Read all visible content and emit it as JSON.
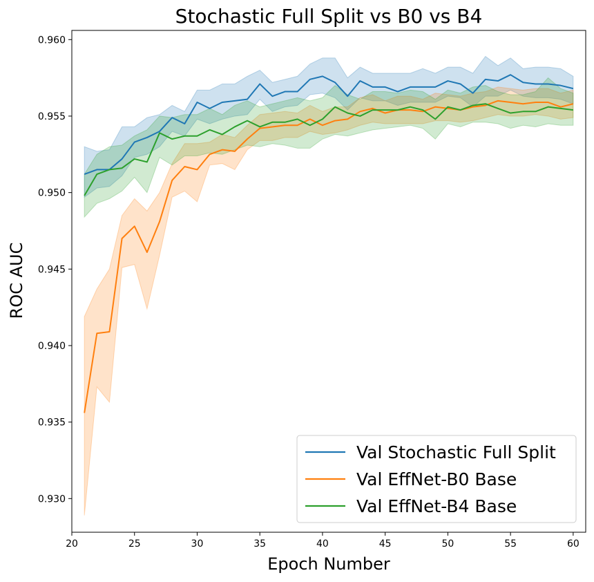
{
  "chart_data": {
    "type": "line",
    "title": "Stochastic Full Split vs B0 vs B4",
    "xlabel": "Epoch Number",
    "ylabel": "ROC AUC",
    "xlim": [
      20,
      61
    ],
    "ylim": [
      0.9278,
      0.9606
    ],
    "xticks": [
      20,
      25,
      30,
      35,
      40,
      45,
      50,
      55,
      60
    ],
    "yticks": [
      0.93,
      0.935,
      0.94,
      0.945,
      0.95,
      0.955,
      0.96
    ],
    "ytick_labels": [
      "0.930",
      "0.935",
      "0.940",
      "0.945",
      "0.950",
      "0.955",
      "0.960"
    ],
    "legend_position": "lower-right",
    "grid": false,
    "x": [
      21,
      22,
      23,
      24,
      25,
      26,
      27,
      28,
      29,
      30,
      31,
      32,
      33,
      34,
      35,
      36,
      37,
      38,
      39,
      40,
      41,
      42,
      43,
      44,
      45,
      46,
      47,
      48,
      49,
      50,
      51,
      52,
      53,
      54,
      55,
      56,
      57,
      58,
      59,
      60
    ],
    "series": [
      {
        "name": "Val Stochastic Full Split",
        "color": "#1f77b4",
        "values": [
          0.9512,
          0.9515,
          0.9515,
          0.9522,
          0.9533,
          0.9536,
          0.954,
          0.9549,
          0.9545,
          0.9559,
          0.9555,
          0.9559,
          0.956,
          0.9561,
          0.9571,
          0.9563,
          0.9566,
          0.9566,
          0.9574,
          0.9576,
          0.9572,
          0.9563,
          0.9573,
          0.9569,
          0.9569,
          0.9566,
          0.9569,
          0.9569,
          0.9569,
          0.9573,
          0.9571,
          0.9565,
          0.9574,
          0.9573,
          0.9577,
          0.9572,
          0.9571,
          0.9571,
          0.957,
          0.9568
        ],
        "lower": [
          0.9497,
          0.9503,
          0.9504,
          0.9511,
          0.9523,
          0.9525,
          0.953,
          0.954,
          0.9537,
          0.9548,
          0.9545,
          0.9548,
          0.955,
          0.9551,
          0.9561,
          0.9553,
          0.9556,
          0.9557,
          0.9564,
          0.9565,
          0.9562,
          0.9554,
          0.9562,
          0.956,
          0.956,
          0.9557,
          0.9559,
          0.9559,
          0.9559,
          0.9563,
          0.9562,
          0.9556,
          0.9563,
          0.9563,
          0.9567,
          0.9563,
          0.9562,
          0.9562,
          0.9561,
          0.9558
        ],
        "upper": [
          0.953,
          0.9527,
          0.9528,
          0.9543,
          0.9543,
          0.9549,
          0.9551,
          0.9557,
          0.9553,
          0.9567,
          0.9567,
          0.9571,
          0.9571,
          0.9576,
          0.958,
          0.9572,
          0.9574,
          0.9576,
          0.9584,
          0.9588,
          0.9588,
          0.9575,
          0.9582,
          0.9578,
          0.9578,
          0.9578,
          0.9578,
          0.9581,
          0.9578,
          0.9582,
          0.9582,
          0.9578,
          0.9589,
          0.9583,
          0.9588,
          0.9581,
          0.9582,
          0.9582,
          0.9581,
          0.9576
        ]
      },
      {
        "name": "Val EffNet-B0 Base",
        "color": "#ff7f0e",
        "values": [
          0.9356,
          0.9408,
          0.9409,
          0.947,
          0.9478,
          0.9461,
          0.9481,
          0.9508,
          0.9517,
          0.9515,
          0.9525,
          0.9528,
          0.9527,
          0.9535,
          0.9542,
          0.9543,
          0.9544,
          0.9544,
          0.9548,
          0.9544,
          0.9547,
          0.9548,
          0.9553,
          0.9555,
          0.9552,
          0.9554,
          0.9554,
          0.9553,
          0.9556,
          0.9555,
          0.9554,
          0.9556,
          0.9557,
          0.956,
          0.9559,
          0.9558,
          0.9559,
          0.9559,
          0.9556,
          0.9558
        ],
        "lower": [
          0.9289,
          0.9373,
          0.9363,
          0.9451,
          0.9453,
          0.9424,
          0.9459,
          0.9497,
          0.9501,
          0.9494,
          0.9518,
          0.9519,
          0.9515,
          0.9528,
          0.9534,
          0.9534,
          0.9536,
          0.9536,
          0.954,
          0.9538,
          0.9539,
          0.9541,
          0.9544,
          0.9546,
          0.9545,
          0.9545,
          0.9545,
          0.9545,
          0.9547,
          0.9547,
          0.9546,
          0.9547,
          0.9549,
          0.9551,
          0.955,
          0.955,
          0.9551,
          0.955,
          0.9548,
          0.9549
        ],
        "upper": [
          0.9419,
          0.9437,
          0.945,
          0.9485,
          0.9496,
          0.9488,
          0.95,
          0.9519,
          0.9532,
          0.9532,
          0.9533,
          0.9538,
          0.9536,
          0.9544,
          0.9551,
          0.9552,
          0.9553,
          0.9552,
          0.9557,
          0.9553,
          0.9556,
          0.9556,
          0.9562,
          0.9564,
          0.956,
          0.9563,
          0.9563,
          0.9561,
          0.9565,
          0.9564,
          0.9563,
          0.9565,
          0.9566,
          0.9569,
          0.9568,
          0.9567,
          0.9568,
          0.9568,
          0.9565,
          0.9567
        ]
      },
      {
        "name": "Val EffNet-B4 Base",
        "color": "#2ca02c",
        "values": [
          0.9498,
          0.9512,
          0.9515,
          0.9516,
          0.9522,
          0.952,
          0.9539,
          0.9535,
          0.9537,
          0.9537,
          0.9541,
          0.9538,
          0.9543,
          0.9547,
          0.9543,
          0.9546,
          0.9546,
          0.9548,
          0.9544,
          0.9548,
          0.9556,
          0.9552,
          0.955,
          0.9554,
          0.9554,
          0.9554,
          0.9556,
          0.9554,
          0.9548,
          0.9556,
          0.9554,
          0.9557,
          0.9558,
          0.9555,
          0.9552,
          0.9553,
          0.9553,
          0.9556,
          0.9555,
          0.9554
        ],
        "lower": [
          0.9484,
          0.9493,
          0.9496,
          0.9501,
          0.951,
          0.95,
          0.9523,
          0.9518,
          0.9524,
          0.9524,
          0.9526,
          0.9525,
          0.9528,
          0.9531,
          0.953,
          0.9532,
          0.9531,
          0.9529,
          0.9529,
          0.9535,
          0.9538,
          0.9537,
          0.9539,
          0.9541,
          0.9542,
          0.9543,
          0.9544,
          0.9542,
          0.9535,
          0.9545,
          0.9543,
          0.9546,
          0.9546,
          0.9545,
          0.9542,
          0.9544,
          0.9543,
          0.9545,
          0.9544,
          0.9544
        ],
        "upper": [
          0.9512,
          0.9525,
          0.953,
          0.9531,
          0.9537,
          0.9541,
          0.955,
          0.9549,
          0.9551,
          0.9551,
          0.9555,
          0.9551,
          0.9557,
          0.956,
          0.9556,
          0.9558,
          0.956,
          0.9562,
          0.956,
          0.9562,
          0.957,
          0.9564,
          0.9561,
          0.9566,
          0.9566,
          0.9565,
          0.9567,
          0.9566,
          0.9561,
          0.9567,
          0.9565,
          0.9569,
          0.957,
          0.9566,
          0.9564,
          0.9564,
          0.9566,
          0.9575,
          0.9568,
          0.9565
        ]
      }
    ]
  }
}
